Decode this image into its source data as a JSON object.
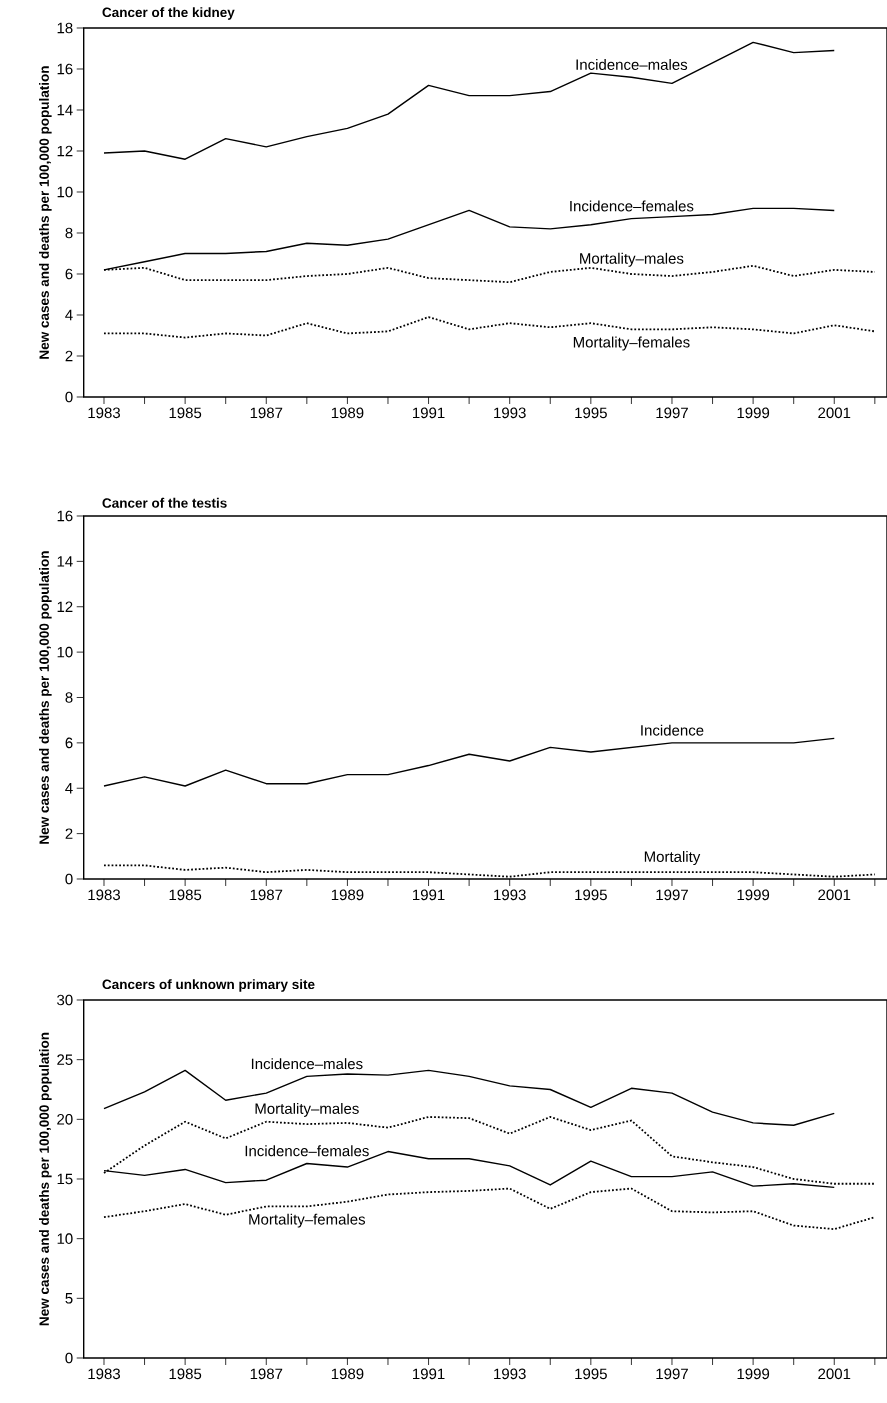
{
  "chart_data": [
    {
      "type": "line",
      "title": "Cancer of the kidney",
      "ylabel": "New cases and deaths per 100,000 population",
      "x": [
        1983,
        1984,
        1985,
        1986,
        1987,
        1988,
        1989,
        1990,
        1991,
        1992,
        1993,
        1994,
        1995,
        1996,
        1997,
        1998,
        1999,
        2000,
        2001,
        2002
      ],
      "series": [
        {
          "name": "Incidence–males",
          "color": "#000000",
          "line_style": "solid",
          "values": [
            11.9,
            12.0,
            11.6,
            12.6,
            12.2,
            12.7,
            13.1,
            13.8,
            15.2,
            14.7,
            14.7,
            14.9,
            15.8,
            15.6,
            15.3,
            16.3,
            17.3,
            16.8,
            16.9,
            null
          ]
        },
        {
          "name": "Incidence–females",
          "color": "#000000",
          "line_style": "solid",
          "values": [
            6.2,
            6.6,
            7.0,
            7.0,
            7.1,
            7.5,
            7.4,
            7.7,
            8.4,
            9.1,
            8.3,
            8.2,
            8.4,
            8.7,
            8.8,
            8.9,
            9.2,
            9.2,
            9.1,
            null
          ]
        },
        {
          "name": "Mortality–males",
          "color": "#000000",
          "line_style": "dotted",
          "values": [
            6.2,
            6.3,
            5.7,
            5.7,
            5.7,
            5.9,
            6.0,
            6.3,
            5.8,
            5.7,
            5.6,
            6.1,
            6.3,
            6.0,
            5.9,
            6.1,
            6.4,
            5.9,
            6.2,
            6.1
          ]
        },
        {
          "name": "Mortality–females",
          "color": "#000000",
          "line_style": "dotted",
          "values": [
            3.1,
            3.1,
            2.9,
            3.1,
            3.0,
            3.6,
            3.1,
            3.2,
            3.9,
            3.3,
            3.6,
            3.4,
            3.6,
            3.3,
            3.3,
            3.4,
            3.3,
            3.1,
            3.5,
            3.2
          ]
        }
      ],
      "xlim": [
        1982.5,
        2002.3
      ],
      "ylim": [
        0,
        18
      ],
      "xticks": [
        1983,
        {
          "value": 1984,
          "label": null
        },
        1985,
        {
          "value": 1986,
          "label": null
        },
        1987,
        {
          "value": 1988,
          "label": null
        },
        1989,
        {
          "value": 1990,
          "label": null
        },
        1991,
        {
          "value": 1992,
          "label": null
        },
        1993,
        {
          "value": 1994,
          "label": null
        },
        1995,
        {
          "value": 1996,
          "label": null
        },
        1997,
        {
          "value": 1998,
          "label": null
        },
        1999,
        {
          "value": 2000,
          "label": null
        },
        2001,
        {
          "value": 2002,
          "label": null
        }
      ],
      "yticks": [
        0,
        2,
        4,
        6,
        8,
        10,
        12,
        14,
        16,
        18
      ]
    },
    {
      "type": "line",
      "title": "Cancer of the testis",
      "ylabel": "New cases and deaths per 100,000 population",
      "x": [
        1983,
        1984,
        1985,
        1986,
        1987,
        1988,
        1989,
        1990,
        1991,
        1992,
        1993,
        1994,
        1995,
        1996,
        1997,
        1998,
        1999,
        2000,
        2001,
        2002
      ],
      "series": [
        {
          "name": "Incidence",
          "color": "#000000",
          "line_style": "solid",
          "values": [
            4.1,
            4.5,
            4.1,
            4.8,
            4.2,
            4.2,
            4.6,
            4.6,
            5.0,
            5.5,
            5.2,
            5.8,
            5.6,
            5.8,
            6.0,
            6.0,
            6.0,
            6.0,
            6.2,
            null
          ]
        },
        {
          "name": "Mortality",
          "color": "#000000",
          "line_style": "dotted",
          "values": [
            0.6,
            0.6,
            0.4,
            0.5,
            0.3,
            0.4,
            0.3,
            0.3,
            0.3,
            0.2,
            0.1,
            0.3,
            0.3,
            0.3,
            0.3,
            0.3,
            0.3,
            0.2,
            0.1,
            0.2
          ]
        }
      ],
      "xlim": [
        1982.5,
        2002.3
      ],
      "ylim": [
        0,
        16
      ],
      "xticks": [
        1983,
        {
          "value": 1984,
          "label": null
        },
        1985,
        {
          "value": 1986,
          "label": null
        },
        1987,
        {
          "value": 1988,
          "label": null
        },
        1989,
        {
          "value": 1990,
          "label": null
        },
        1991,
        {
          "value": 1992,
          "label": null
        },
        1993,
        {
          "value": 1994,
          "label": null
        },
        1995,
        {
          "value": 1996,
          "label": null
        },
        1997,
        {
          "value": 1998,
          "label": null
        },
        1999,
        {
          "value": 2000,
          "label": null
        },
        2001,
        {
          "value": 2002,
          "label": null
        }
      ],
      "yticks": [
        0,
        2,
        4,
        6,
        8,
        10,
        12,
        14,
        16
      ]
    },
    {
      "type": "line",
      "title": "Cancers of unknown primary site",
      "ylabel": "New cases and deaths per 100,000 population",
      "x": [
        1983,
        1984,
        1985,
        1986,
        1987,
        1988,
        1989,
        1990,
        1991,
        1992,
        1993,
        1994,
        1995,
        1996,
        1997,
        1998,
        1999,
        2000,
        2001,
        2002
      ],
      "series": [
        {
          "name": "Incidence–males",
          "color": "#000000",
          "line_style": "solid",
          "values": [
            20.9,
            22.3,
            24.1,
            21.6,
            22.2,
            23.6,
            23.8,
            23.7,
            24.1,
            23.6,
            22.8,
            22.5,
            21.0,
            22.6,
            22.2,
            20.6,
            19.7,
            19.5,
            20.5,
            null
          ]
        },
        {
          "name": "Mortality–males",
          "color": "#000000",
          "line_style": "dotted",
          "values": [
            15.5,
            17.8,
            19.8,
            18.4,
            19.8,
            19.6,
            19.7,
            19.3,
            20.2,
            20.1,
            18.8,
            20.2,
            19.1,
            19.9,
            16.9,
            16.4,
            16.0,
            15.0,
            14.6,
            14.6
          ]
        },
        {
          "name": "Incidence–females",
          "color": "#000000",
          "line_style": "solid",
          "values": [
            15.7,
            15.3,
            15.8,
            14.7,
            14.9,
            16.3,
            16.0,
            17.3,
            16.7,
            16.7,
            16.1,
            14.5,
            16.5,
            15.2,
            15.2,
            15.6,
            14.4,
            14.6,
            14.3,
            null
          ]
        },
        {
          "name": "Mortality–females",
          "color": "#000000",
          "line_style": "dotted",
          "values": [
            11.8,
            12.3,
            12.9,
            12.0,
            12.7,
            12.7,
            13.1,
            13.7,
            13.9,
            14.0,
            14.2,
            12.5,
            13.9,
            14.2,
            12.3,
            12.2,
            12.3,
            11.1,
            10.8,
            11.8
          ]
        }
      ],
      "xlim": [
        1982.5,
        2002.3
      ],
      "ylim": [
        0,
        30
      ],
      "xticks": [
        1983,
        {
          "value": 1984,
          "label": null
        },
        1985,
        {
          "value": 1986,
          "label": null
        },
        1987,
        {
          "value": 1988,
          "label": null
        },
        1989,
        {
          "value": 1990,
          "label": null
        },
        1991,
        {
          "value": 1992,
          "label": null
        },
        1993,
        {
          "value": 1994,
          "label": null
        },
        1995,
        {
          "value": 1996,
          "label": null
        },
        1997,
        {
          "value": 1998,
          "label": null
        },
        1999,
        {
          "value": 2000,
          "label": null
        },
        2001,
        {
          "value": 2002,
          "label": null
        }
      ],
      "yticks": [
        0,
        5,
        10,
        15,
        20,
        25,
        30
      ]
    }
  ]
}
